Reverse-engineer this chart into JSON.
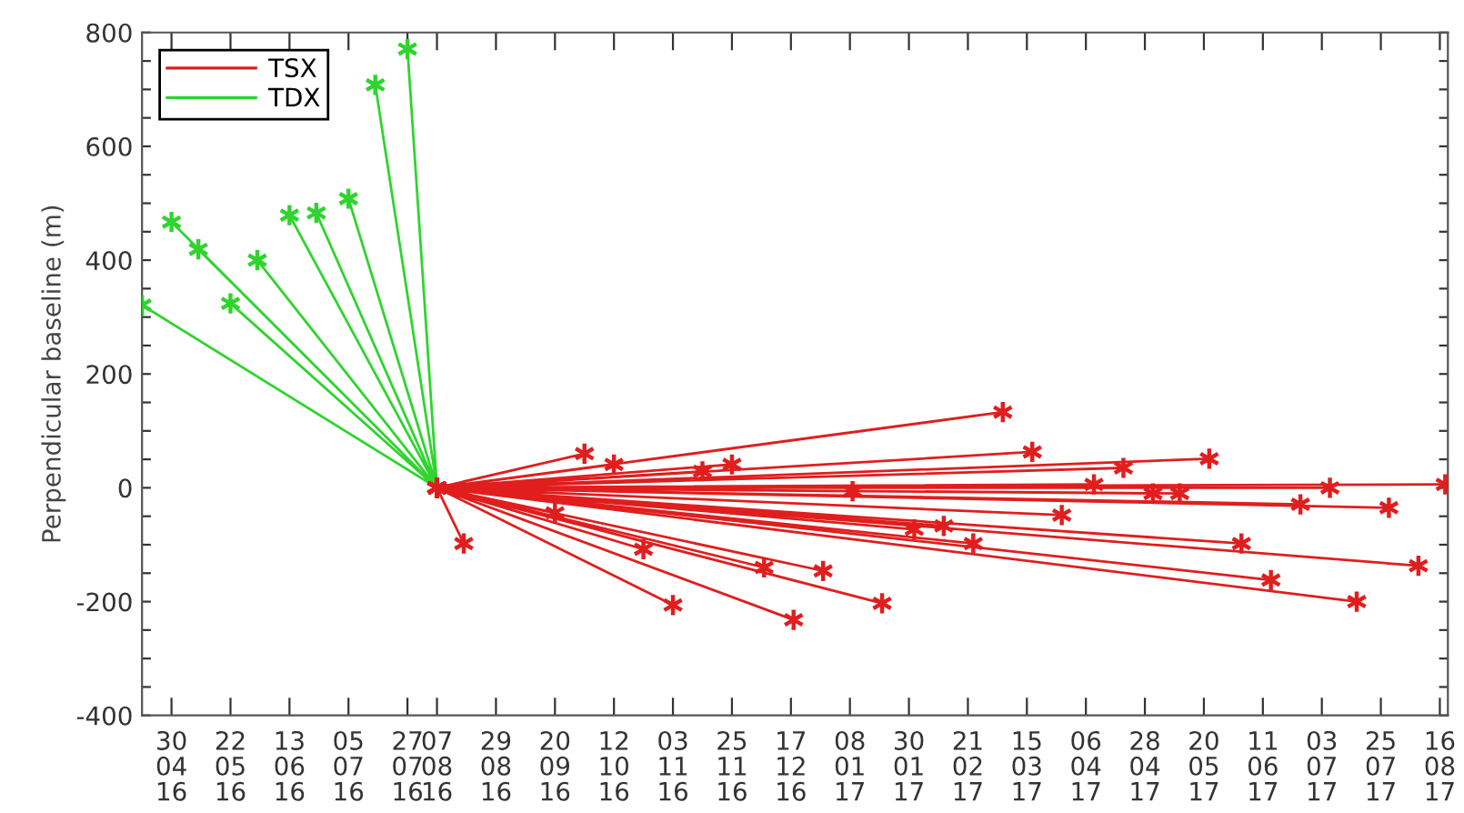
{
  "chart_data": {
    "type": "line",
    "ylabel": "Perpendicular baseline (m)",
    "xlim": [
      "2016-04-19",
      "2017-08-19"
    ],
    "ylim": [
      -400,
      800
    ],
    "xticks": [
      {
        "value": "2016-04-30",
        "label": "30\n04\n16"
      },
      {
        "value": "2016-05-22",
        "label": "22\n05\n16"
      },
      {
        "value": "2016-06-13",
        "label": "13\n06\n16"
      },
      {
        "value": "2016-07-05",
        "label": "05\n07\n16"
      },
      {
        "value": "2016-07-27",
        "label": "27\n07\n16"
      },
      {
        "value": "2016-08-07",
        "label": "07\n08\n16"
      },
      {
        "value": "2016-08-29",
        "label": "29\n08\n16"
      },
      {
        "value": "2016-09-20",
        "label": "20\n09\n16"
      },
      {
        "value": "2016-10-12",
        "label": "12\n10\n16"
      },
      {
        "value": "2016-11-03",
        "label": "03\n11\n16"
      },
      {
        "value": "2016-11-25",
        "label": "25\n11\n16"
      },
      {
        "value": "2016-12-17",
        "label": "17\n12\n16"
      },
      {
        "value": "2017-01-08",
        "label": "08\n01\n17"
      },
      {
        "value": "2017-01-30",
        "label": "30\n01\n17"
      },
      {
        "value": "2017-02-21",
        "label": "21\n02\n17"
      },
      {
        "value": "2017-03-15",
        "label": "15\n03\n17"
      },
      {
        "value": "2017-04-06",
        "label": "06\n04\n17"
      },
      {
        "value": "2017-04-28",
        "label": "28\n04\n17"
      },
      {
        "value": "2017-05-20",
        "label": "20\n05\n17"
      },
      {
        "value": "2017-06-11",
        "label": "11\n06\n17"
      },
      {
        "value": "2017-07-03",
        "label": "03\n07\n17"
      },
      {
        "value": "2017-07-25",
        "label": "25\n07\n17"
      },
      {
        "value": "2017-08-16",
        "label": "16\n08\n17"
      }
    ],
    "yticks": [
      -400,
      {
        "value": -350,
        "label": null
      },
      {
        "value": -300,
        "label": null
      },
      {
        "value": -250,
        "label": null
      },
      -200,
      {
        "value": -150,
        "label": null
      },
      {
        "value": -100,
        "label": null
      },
      {
        "value": -50,
        "label": null
      },
      0,
      {
        "value": 50,
        "label": null
      },
      {
        "value": 100,
        "label": null
      },
      {
        "value": 150,
        "label": null
      },
      200,
      {
        "value": 250,
        "label": null
      },
      {
        "value": 300,
        "label": null
      },
      {
        "value": 350,
        "label": null
      },
      400,
      {
        "value": 450,
        "label": null
      },
      {
        "value": 500,
        "label": null
      },
      {
        "value": 550,
        "label": null
      },
      600,
      {
        "value": 650,
        "label": null
      },
      {
        "value": 700,
        "label": null
      },
      {
        "value": 750,
        "label": null
      },
      800
    ],
    "marker": "cross",
    "line_style": "solid",
    "grid": false,
    "legend": "top left",
    "series": [
      {
        "name": "TSX",
        "color": "#e01e1e",
        "x": [
          "2016-08-07",
          "2016-08-17",
          "2016-08-07",
          "2016-09-20",
          "2016-08-07",
          "2016-10-01",
          "2016-08-07",
          "2016-10-12",
          "2016-08-07",
          "2016-10-23",
          "2016-08-07",
          "2016-11-03",
          "2016-08-07",
          "2016-11-14",
          "2016-08-07",
          "2016-11-25",
          "2016-08-07",
          "2016-12-07",
          "2016-08-07",
          "2016-12-18",
          "2016-08-07",
          "2016-12-29",
          "2016-08-07",
          "2017-01-09",
          "2016-08-07",
          "2017-01-20",
          "2016-08-07",
          "2017-02-01",
          "2016-08-07",
          "2017-02-12",
          "2016-08-07",
          "2017-02-23",
          "2016-08-07",
          "2017-03-06",
          "2016-08-07",
          "2017-03-17",
          "2016-08-07",
          "2017-03-28",
          "2016-08-07",
          "2017-04-09",
          "2016-08-07",
          "2017-04-20",
          "2016-08-07",
          "2017-05-01",
          "2016-08-07",
          "2017-05-11",
          "2016-08-07",
          "2017-05-22",
          "2016-08-07",
          "2017-06-03",
          "2016-08-07",
          "2017-06-14",
          "2016-08-07",
          "2017-06-25",
          "2016-08-07",
          "2017-07-06",
          "2016-08-07",
          "2017-07-16",
          "2016-08-07",
          "2017-07-28",
          "2016-08-07",
          "2017-08-08",
          "2016-08-07",
          "2017-08-18"
        ],
        "values": [
          0,
          -98,
          0,
          -44,
          0,
          60,
          0,
          41,
          0,
          -108,
          0,
          -206,
          0,
          29,
          0,
          41,
          0,
          -140,
          0,
          -232,
          0,
          -146,
          0,
          -6,
          0,
          -203,
          0,
          -73,
          0,
          -67,
          0,
          -98,
          0,
          133,
          0,
          63,
          0,
          -48,
          0,
          6,
          0,
          35,
          0,
          -10,
          0,
          -10,
          0,
          51,
          0,
          -98,
          0,
          -162,
          0,
          -29,
          0,
          0,
          0,
          -200,
          0,
          -35,
          0,
          -137,
          0,
          6
        ]
      },
      {
        "name": "TDX",
        "color": "#2fd42f",
        "x": [
          "2016-08-07",
          "2016-04-19",
          "2016-08-07",
          "2016-04-30",
          "2016-08-07",
          "2016-05-10",
          "2016-08-07",
          "2016-05-22",
          "2016-08-07",
          "2016-06-01",
          "2016-08-07",
          "2016-06-13",
          "2016-08-07",
          "2016-06-23",
          "2016-08-07",
          "2016-07-05",
          "2016-08-07",
          "2016-07-15",
          "2016-08-07",
          "2016-07-27"
        ],
        "values": [
          0,
          321,
          0,
          467,
          0,
          419,
          0,
          324,
          0,
          400,
          0,
          479,
          0,
          483,
          0,
          508,
          0,
          708,
          0,
          771
        ]
      }
    ]
  }
}
